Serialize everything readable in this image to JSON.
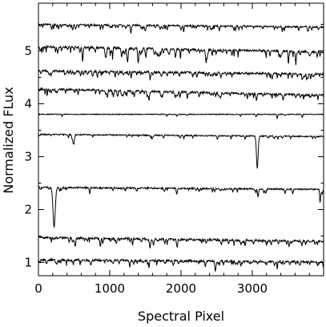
{
  "chart_data": {
    "type": "line",
    "xlabel": "Spectral Pixel",
    "ylabel": "Normalized FLux",
    "xlim": [
      0,
      4000
    ],
    "ylim": [
      0.75,
      5.9
    ],
    "xticks": [
      0,
      1000,
      2000,
      3000
    ],
    "yticks": [
      1,
      2,
      3,
      4,
      5
    ],
    "grid": false,
    "legend": "none",
    "line_color": "#000000",
    "series": [
      {
        "baseline": 1.05,
        "slope": -0.04,
        "noise": 0.02,
        "lines": 70,
        "depth": 0.06,
        "features": [
          {
            "x": 1280,
            "depth": 0.1,
            "width": 10
          },
          {
            "x": 2480,
            "depth": 0.12,
            "width": 8
          },
          {
            "x": 2840,
            "depth": 0.08,
            "width": 8
          },
          {
            "x": 3350,
            "depth": 0.08,
            "width": 8
          }
        ]
      },
      {
        "baseline": 1.47,
        "slope": -0.07,
        "noise": 0.02,
        "lines": 60,
        "depth": 0.07,
        "features": [
          {
            "x": 520,
            "depth": 0.12,
            "width": 8
          },
          {
            "x": 870,
            "depth": 0.14,
            "width": 8
          },
          {
            "x": 1320,
            "depth": 0.12,
            "width": 8
          },
          {
            "x": 2900,
            "depth": 0.12,
            "width": 8
          }
        ]
      },
      {
        "baseline": 2.42,
        "slope": -0.04,
        "noise": 0.015,
        "lines": 35,
        "depth": 0.06,
        "features": [
          {
            "x": 220,
            "depth": 0.75,
            "width": 22
          },
          {
            "x": 720,
            "depth": 0.12,
            "width": 8
          },
          {
            "x": 1940,
            "depth": 0.12,
            "width": 10
          },
          {
            "x": 3080,
            "depth": 0.15,
            "width": 10
          },
          {
            "x": 3950,
            "depth": 0.25,
            "width": 8
          }
        ]
      },
      {
        "baseline": 3.42,
        "slope": -0.04,
        "noise": 0.012,
        "lines": 25,
        "depth": 0.05,
        "features": [
          {
            "x": 490,
            "depth": 0.15,
            "width": 14
          },
          {
            "x": 3070,
            "depth": 0.62,
            "width": 16
          },
          {
            "x": 2040,
            "depth": 0.06,
            "width": 8
          }
        ]
      },
      {
        "baseline": 3.8,
        "slope": 0.0,
        "noise": 0.008,
        "lines": 8,
        "depth": 0.04,
        "features": [
          {
            "x": 3350,
            "depth": 0.08,
            "width": 8
          },
          {
            "x": 3700,
            "depth": 0.06,
            "width": 8
          }
        ]
      },
      {
        "baseline": 4.28,
        "slope": -0.12,
        "noise": 0.02,
        "lines": 70,
        "depth": 0.09,
        "features": [
          {
            "x": 1550,
            "depth": 0.18,
            "width": 10
          },
          {
            "x": 1050,
            "depth": 0.12,
            "width": 8
          }
        ]
      },
      {
        "baseline": 4.62,
        "slope": -0.06,
        "noise": 0.02,
        "lines": 75,
        "depth": 0.07,
        "features": [
          {
            "x": 1300,
            "depth": 0.12,
            "width": 8
          }
        ]
      },
      {
        "baseline": 5.08,
        "slope": -0.1,
        "noise": 0.02,
        "lines": 90,
        "depth": 0.1,
        "features": [
          {
            "x": 1250,
            "depth": 0.28,
            "width": 12
          },
          {
            "x": 620,
            "depth": 0.15,
            "width": 10
          }
        ]
      },
      {
        "baseline": 5.5,
        "slope": -0.05,
        "noise": 0.015,
        "lines": 75,
        "depth": 0.07,
        "features": [
          {
            "x": 480,
            "depth": 0.1,
            "width": 10
          }
        ]
      }
    ]
  }
}
